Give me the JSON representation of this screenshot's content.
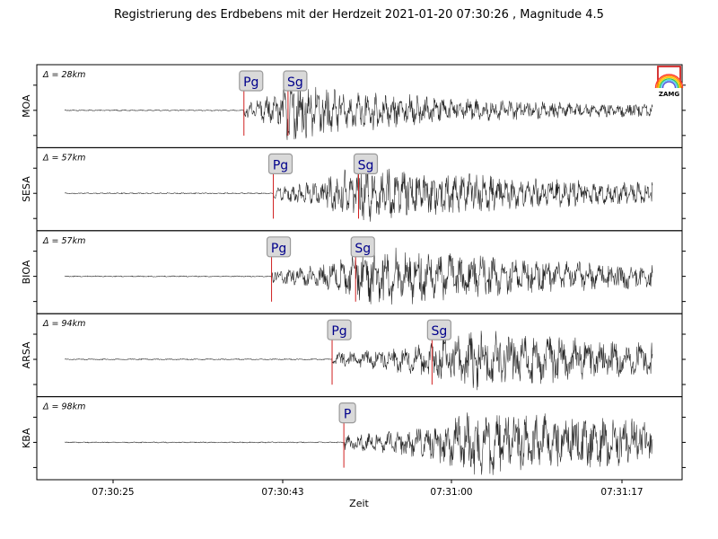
{
  "chart_data": {
    "type": "line",
    "title": "Registrierung des Erdbebens mit der Herdzeit 2021-01-20 07:30:26 , Magnitude 4.5",
    "xlabel": "Zeit",
    "x_ticks": [
      "07:30:25",
      "07:30:43",
      "07:31:00",
      "07:31:17"
    ],
    "logo_text": "ZAMG",
    "series": [
      {
        "name": "MOA",
        "distance": "Δ = 28km",
        "phases": [
          {
            "label": "Pg",
            "x": 0.305
          },
          {
            "label": "Sg",
            "x": 0.38
          }
        ],
        "onset": 0.305,
        "peak": 0.38,
        "amp": 0.9,
        "tail": 0.12,
        "decay": 4.0,
        "freq": 70
      },
      {
        "name": "SESA",
        "distance": "Δ = 57km",
        "phases": [
          {
            "label": "Pg",
            "x": 0.355
          },
          {
            "label": "Sg",
            "x": 0.5
          }
        ],
        "onset": 0.355,
        "peak": 0.5,
        "amp": 0.85,
        "tail": 0.18,
        "decay": 3.0,
        "freq": 80
      },
      {
        "name": "BIOA",
        "distance": "Δ = 57km",
        "phases": [
          {
            "label": "Pg",
            "x": 0.352
          },
          {
            "label": "Sg",
            "x": 0.495
          }
        ],
        "onset": 0.352,
        "peak": 0.53,
        "amp": 0.9,
        "tail": 0.15,
        "decay": 3.0,
        "freq": 55
      },
      {
        "name": "ARSA",
        "distance": "Δ = 94km",
        "phases": [
          {
            "label": "Pg",
            "x": 0.455
          },
          {
            "label": "Sg",
            "x": 0.625
          }
        ],
        "onset": 0.455,
        "peak": 0.7,
        "amp": 0.9,
        "tail": 0.2,
        "decay": 3.0,
        "freq": 45
      },
      {
        "name": "KBA",
        "distance": "Δ = 98km",
        "phases": [
          {
            "label": "P",
            "x": 0.475
          }
        ],
        "onset": 0.475,
        "peak": 0.7,
        "amp": 0.95,
        "tail": 0.3,
        "decay": 2.2,
        "freq": 60
      }
    ]
  }
}
